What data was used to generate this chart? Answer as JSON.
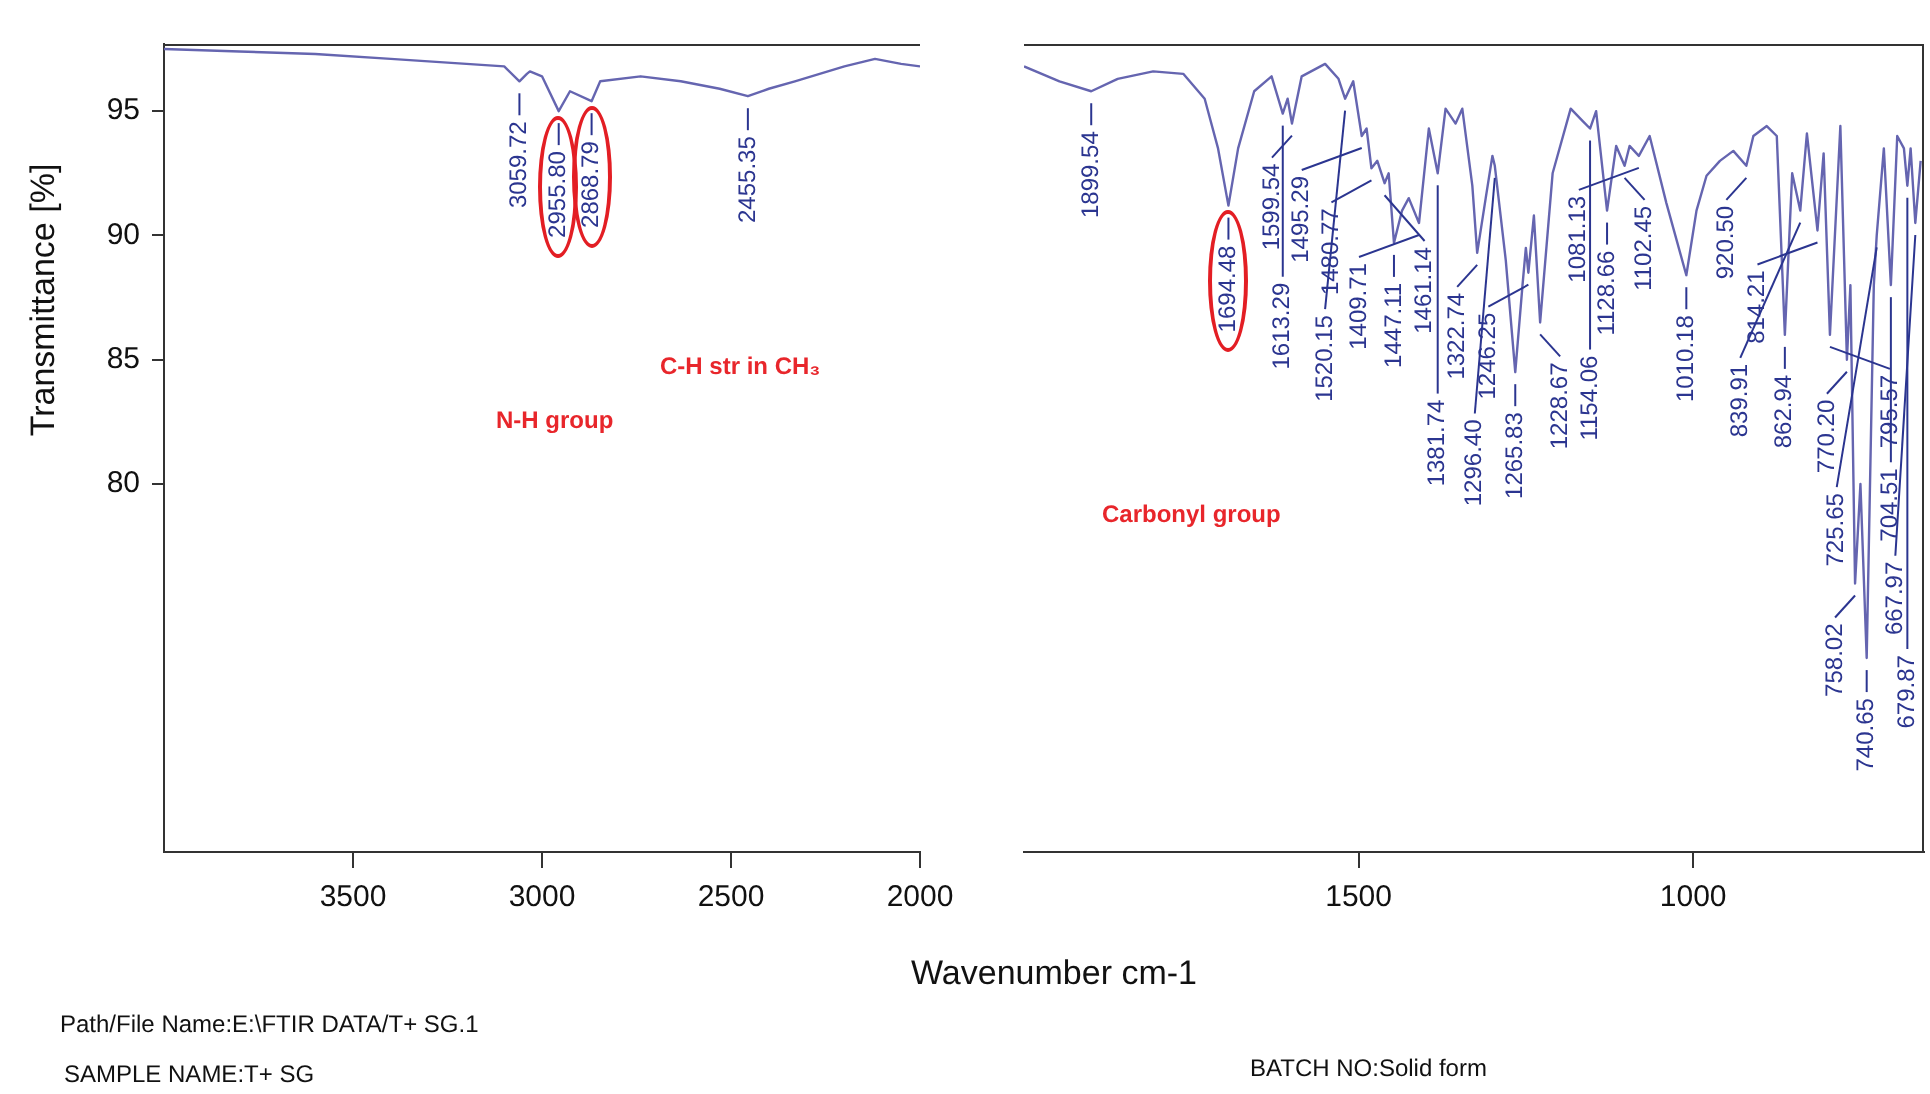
{
  "chart_data": [
    {
      "type": "line",
      "ylabel": "Transmittance [%]",
      "xlim": [
        4000,
        2000
      ],
      "xticks": [
        3500,
        3000,
        2500,
        2000
      ],
      "ylim": [
        65.2,
        97.7
      ],
      "yticks": [
        80,
        85,
        90,
        95
      ],
      "x": [
        4000,
        3800,
        3600,
        3400,
        3200,
        3100,
        3059.72,
        3040,
        3032,
        3000,
        2955.8,
        2926,
        2868.79,
        2846,
        2739,
        2633,
        2530,
        2455.35,
        2400,
        2331,
        2200,
        2119,
        2050,
        2000
      ],
      "series": [
        {
          "color": "#6565b0",
          "values": [
            97.5,
            97.4,
            97.3,
            97.1,
            96.9,
            96.8,
            96.2,
            96.5,
            96.6,
            96.4,
            95.0,
            95.8,
            95.4,
            96.2,
            96.4,
            96.2,
            95.9,
            95.6,
            95.9,
            96.2,
            96.8,
            97.1,
            96.9,
            96.8
          ]
        }
      ],
      "annotations": [
        "Path/File Name:E:\\FTIR DATA/T+ SG.1",
        "SAMPLE NAME:T+ SG",
        "BATCH NO:Solid form",
        "N-H group",
        "C-H str in CH₃",
        {
          "text": "3059.72",
          "x": 3059.72,
          "y": 96.2
        },
        {
          "text": "2955.80",
          "x": 2955.8,
          "y": 95.0
        },
        {
          "text": "2868.79",
          "x": 2868.79,
          "y": 95.4
        },
        {
          "text": "2455.35",
          "x": 2455.35,
          "y": 95.6
        }
      ]
    },
    {
      "type": "line",
      "xlabel": "Wavenumber cm-1",
      "xlim": [
        2000,
        655
      ],
      "xticks": [
        1500,
        1000
      ],
      "ylim": [
        65.2,
        97.7
      ],
      "yticks": [
        80,
        85,
        90,
        95
      ],
      "tick_labels": "x",
      "x": [
        2000,
        1947,
        1899.54,
        1860,
        1807,
        1762,
        1730,
        1710,
        1694.48,
        1680,
        1656,
        1630,
        1613.29,
        1606,
        1599.54,
        1585,
        1550,
        1530,
        1520.15,
        1508,
        1495.29,
        1488,
        1480.77,
        1472,
        1461.14,
        1455,
        1447.11,
        1435,
        1425,
        1409.71,
        1395,
        1381.74,
        1370,
        1355,
        1345,
        1330,
        1322.74,
        1310,
        1300,
        1296.4,
        1280,
        1265.83,
        1255,
        1250,
        1246.25,
        1238,
        1228.67,
        1210,
        1183,
        1165,
        1154.06,
        1145,
        1128.66,
        1115,
        1102.45,
        1095,
        1081.13,
        1065,
        1040,
        1010.18,
        995,
        980,
        960,
        940,
        920.5,
        910,
        890,
        875,
        862.94,
        852,
        839.91,
        830,
        814.21,
        805,
        795.57,
        780,
        770.2,
        765,
        758.02,
        750,
        740.65,
        730,
        725.65,
        715,
        704.51,
        695,
        685,
        679.87,
        675,
        667.97,
        660
      ],
      "series": [
        {
          "color": "#6565b0",
          "values": [
            96.8,
            96.2,
            95.8,
            96.3,
            96.6,
            96.5,
            95.5,
            93.5,
            91.2,
            93.5,
            95.8,
            96.4,
            94.9,
            95.5,
            94.5,
            96.4,
            96.9,
            96.3,
            95.5,
            96.2,
            94.0,
            94.3,
            92.7,
            93.0,
            92.1,
            92.5,
            89.7,
            91.0,
            91.5,
            90.5,
            94.3,
            92.5,
            95.1,
            94.5,
            95.1,
            92.0,
            89.3,
            91.5,
            93.2,
            92.8,
            89.0,
            84.5,
            88.0,
            89.5,
            88.5,
            90.8,
            86.5,
            92.5,
            95.1,
            94.6,
            94.3,
            95.0,
            91.0,
            93.6,
            92.8,
            93.6,
            93.2,
            94.0,
            91.3,
            88.4,
            91.0,
            92.4,
            93.0,
            93.4,
            92.8,
            94.0,
            94.4,
            94.0,
            86.0,
            92.5,
            91.0,
            94.1,
            90.2,
            93.3,
            86.0,
            94.4,
            85.0,
            88.0,
            76.0,
            80.0,
            73.0,
            88.0,
            90.0,
            93.5,
            88.0,
            94.0,
            93.5,
            92.0,
            93.5,
            90.5,
            93.0
          ]
        }
      ],
      "annotations": [
        "Carbonyl group",
        {
          "text": "1899.54",
          "x": 1899.54,
          "y": 95.8
        },
        {
          "text": "1694.48",
          "x": 1694.48,
          "y": 91.2
        },
        {
          "text": "1613.29",
          "x": 1613.29,
          "y": 94.9
        },
        {
          "text": "1599.54",
          "x": 1599.54,
          "y": 94.5
        },
        {
          "text": "1520.15",
          "x": 1520.15,
          "y": 95.5
        },
        {
          "text": "1495.29",
          "x": 1495.29,
          "y": 94.0
        },
        {
          "text": "1480.77",
          "x": 1480.77,
          "y": 92.7
        },
        {
          "text": "1461.14",
          "x": 1461.14,
          "y": 92.1
        },
        {
          "text": "1447.11",
          "x": 1447.11,
          "y": 89.7
        },
        {
          "text": "1409.71",
          "x": 1409.71,
          "y": 90.5
        },
        {
          "text": "1381.74",
          "x": 1381.74,
          "y": 92.5
        },
        {
          "text": "1322.74",
          "x": 1322.74,
          "y": 89.3
        },
        {
          "text": "1296.40",
          "x": 1296.4,
          "y": 92.8
        },
        {
          "text": "1265.83",
          "x": 1265.83,
          "y": 84.5
        },
        {
          "text": "1246.25",
          "x": 1246.25,
          "y": 88.5
        },
        {
          "text": "1228.67",
          "x": 1228.67,
          "y": 86.5
        },
        {
          "text": "1154.06",
          "x": 1154.06,
          "y": 94.3
        },
        {
          "text": "1128.66",
          "x": 1128.66,
          "y": 91.0
        },
        {
          "text": "1102.45",
          "x": 1102.45,
          "y": 92.8
        },
        {
          "text": "1081.13",
          "x": 1081.13,
          "y": 93.2
        },
        {
          "text": "1010.18",
          "x": 1010.18,
          "y": 88.4
        },
        {
          "text": "920.50",
          "x": 920.5,
          "y": 92.8
        },
        {
          "text": "862.94",
          "x": 862.94,
          "y": 86.0
        },
        {
          "text": "839.91",
          "x": 839.91,
          "y": 91.0
        },
        {
          "text": "814.21",
          "x": 814.21,
          "y": 90.2
        },
        {
          "text": "795.57",
          "x": 795.57,
          "y": 86.0
        },
        {
          "text": "770.20",
          "x": 770.2,
          "y": 85.0
        },
        {
          "text": "758.02",
          "x": 758.02,
          "y": 76.0
        },
        {
          "text": "740.65",
          "x": 740.65,
          "y": 73.0
        },
        {
          "text": "725.65",
          "x": 725.65,
          "y": 90.0
        },
        {
          "text": "704.51",
          "x": 704.51,
          "y": 88.0
        },
        {
          "text": "679.87",
          "x": 679.87,
          "y": 92.0
        },
        {
          "text": "667.97",
          "x": 667.97,
          "y": 90.5
        }
      ]
    }
  ]
}
